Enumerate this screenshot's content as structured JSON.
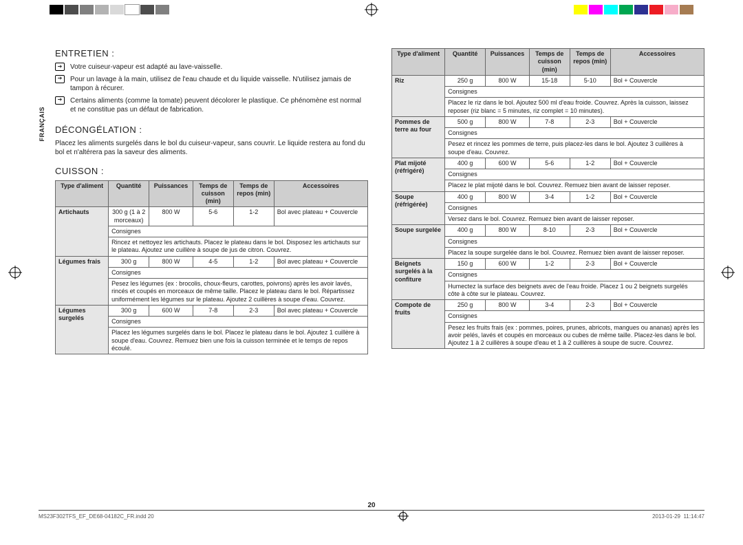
{
  "lang_tab": "FRANÇAIS",
  "page_number": "20",
  "footer": {
    "file": "MS23F302TFS_EF_DE68-04182C_FR.indd   20",
    "date": "2013-01-29",
    "time": "11:14:47"
  },
  "color_strip_left": [
    "#000000",
    "#4d4d4d",
    "#808080",
    "#b3b3b3",
    "#d9d9d9",
    "#ffffff",
    "#4d4d4d",
    "#808080"
  ],
  "color_strip_right": [
    "#ffff00",
    "#ff00ff",
    "#00ffff",
    "#00a651",
    "#2e3192",
    "#ed1c24",
    "#f7adc9",
    "#a67c52"
  ],
  "sections": {
    "entretien": {
      "title": "ENTRETIEN :",
      "bullets": [
        "Votre cuiseur-vapeur est adapté au lave-vaisselle.",
        "Pour un lavage à la main, utilisez de l'eau chaude et du liquide vaisselle. N'utilisez jamais de tampon à récurer.",
        "Certains aliments (comme la tomate) peuvent décolorer le plastique. Ce phénomène est normal et ne constitue pas un défaut de fabrication."
      ]
    },
    "decongelation": {
      "title": "DÉCONGÉLATION :",
      "text": "Placez les aliments surgelés dans le bol du cuiseur-vapeur, sans couvrir. Le liquide restera au fond du bol et n'altérera pas la saveur des aliments."
    },
    "cuisson": {
      "title": "CUISSON :"
    }
  },
  "table_headers": {
    "type": "Type d'aliment",
    "qty": "Quantité",
    "power": "Puissances",
    "cook": "Temps de cuisson (min)",
    "rest": "Temps de repos (min)",
    "acc": "Accessoires",
    "consignes": "Consignes"
  },
  "left_table": [
    {
      "type": "Artichauts",
      "qty": "300 g (1 à 2 morceaux)",
      "power": "800 W",
      "cook": "5-6",
      "rest": "1-2",
      "acc": "Bol avec plateau + Couvercle",
      "consignes": "Rincez et nettoyez les artichauts. Placez le plateau dans le bol. Disposez les artichauts sur le plateau. Ajoutez une cuillère à soupe de jus de citron. Couvrez."
    },
    {
      "type": "Légumes frais",
      "qty": "300 g",
      "power": "800 W",
      "cook": "4-5",
      "rest": "1-2",
      "acc": "Bol avec plateau + Couvercle",
      "consignes": "Pesez les légumes (ex : brocolis, choux-fleurs, carottes, poivrons) après les avoir lavés, rincés et coupés en morceaux de même taille. Placez le plateau dans le bol. Répartissez uniformément les légumes sur le plateau. Ajoutez 2 cuillères à soupe d'eau. Couvrez."
    },
    {
      "type": "Légumes surgelés",
      "qty": "300 g",
      "power": "600 W",
      "cook": "7-8",
      "rest": "2-3",
      "acc": "Bol avec plateau + Couvercle",
      "consignes": "Placez les légumes surgelés dans le bol. Placez le plateau dans le bol. Ajoutez 1 cuillère à soupe d'eau. Couvrez. Remuez bien une fois la cuisson terminée et le temps de repos écoulé."
    }
  ],
  "right_table": [
    {
      "type": "Riz",
      "qty": "250 g",
      "power": "800 W",
      "cook": "15-18",
      "rest": "5-10",
      "acc": "Bol + Couvercle",
      "consignes": "Placez le riz dans le bol. Ajoutez 500 ml d'eau froide. Couvrez. Après la cuisson, laissez reposer (riz blanc = 5 minutes, riz complet = 10 minutes)."
    },
    {
      "type": "Pommes de terre au four",
      "qty": "500 g",
      "power": "800 W",
      "cook": "7-8",
      "rest": "2-3",
      "acc": "Bol + Couvercle",
      "consignes": "Pesez et rincez les pommes de terre, puis placez-les dans le bol. Ajoutez 3 cuillères à soupe d'eau. Couvrez."
    },
    {
      "type": "Plat mijoté (réfrigéré)",
      "qty": "400 g",
      "power": "600 W",
      "cook": "5-6",
      "rest": "1-2",
      "acc": "Bol + Couvercle",
      "consignes": "Placez le plat mijoté dans le bol. Couvrez. Remuez bien avant de laisser reposer."
    },
    {
      "type": "Soupe (réfrigérée)",
      "qty": "400 g",
      "power": "800 W",
      "cook": "3-4",
      "rest": "1-2",
      "acc": "Bol + Couvercle",
      "consignes": "Versez dans le bol. Couvrez. Remuez bien avant de laisser reposer."
    },
    {
      "type": "Soupe surgelée",
      "qty": "400 g",
      "power": "800 W",
      "cook": "8-10",
      "rest": "2-3",
      "acc": "Bol + Couvercle",
      "consignes": "Placez la soupe surgelée dans le bol. Couvrez. Remuez bien avant de laisser reposer."
    },
    {
      "type": "Beignets surgelés à la confiture",
      "qty": "150 g",
      "power": "600 W",
      "cook": "1-2",
      "rest": "2-3",
      "acc": "Bol + Couvercle",
      "consignes": "Humectez la surface des beignets avec de l'eau froide. Placez 1 ou 2 beignets surgelés côte à côte sur le plateau. Couvrez."
    },
    {
      "type": "Compote de fruits",
      "qty": "250 g",
      "power": "800 W",
      "cook": "3-4",
      "rest": "2-3",
      "acc": "Bol + Couvercle",
      "consignes": "Pesez les fruits frais (ex : pommes, poires, prunes, abricots, mangues ou ananas) après les avoir pelés, lavés et coupés en morceaux ou cubes de même taille. Placez-les dans le bol. Ajoutez 1 à 2 cuillères à soupe d'eau et 1 à 2 cuillères à soupe de sucre. Couvrez."
    }
  ]
}
